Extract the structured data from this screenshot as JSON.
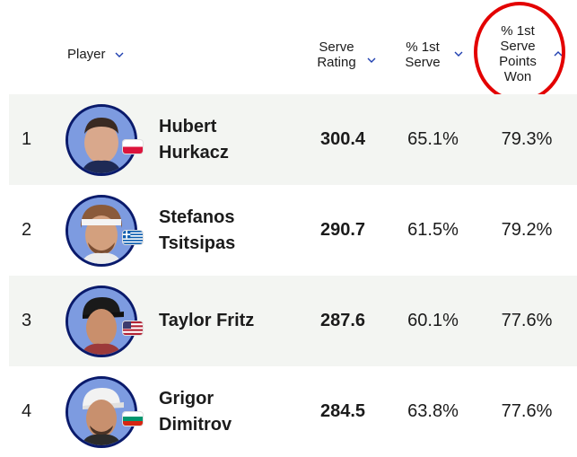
{
  "columns": {
    "player": "Player",
    "serve_rating": [
      "Serve",
      "Rating"
    ],
    "first_serve_pct": [
      "% 1st",
      "Serve"
    ],
    "first_serve_points_won": [
      "% 1st",
      "Serve",
      "Points",
      "Won"
    ]
  },
  "colors": {
    "accent": "#0a1a6b",
    "row_shade": "#f3f5f2",
    "annotation_circle": "#e30000"
  },
  "rows": [
    {
      "rank": "1",
      "first": "Hubert",
      "last": "Hurkacz",
      "flag": "poland-flag",
      "serve_rating": "300.4",
      "first_serve_pct": "65.1%",
      "first_serve_points_won": "79.3%"
    },
    {
      "rank": "2",
      "first": "Stefanos",
      "last": "Tsitsipas",
      "flag": "greece-flag",
      "serve_rating": "290.7",
      "first_serve_pct": "61.5%",
      "first_serve_points_won": "79.2%"
    },
    {
      "rank": "3",
      "first": "Taylor Fritz",
      "last": "",
      "flag": "usa-flag",
      "serve_rating": "287.6",
      "first_serve_pct": "60.1%",
      "first_serve_points_won": "77.6%"
    },
    {
      "rank": "4",
      "first": "Grigor",
      "last": "Dimitrov",
      "flag": "bulgaria-flag",
      "serve_rating": "284.5",
      "first_serve_pct": "63.8%",
      "first_serve_points_won": "77.6%"
    }
  ]
}
